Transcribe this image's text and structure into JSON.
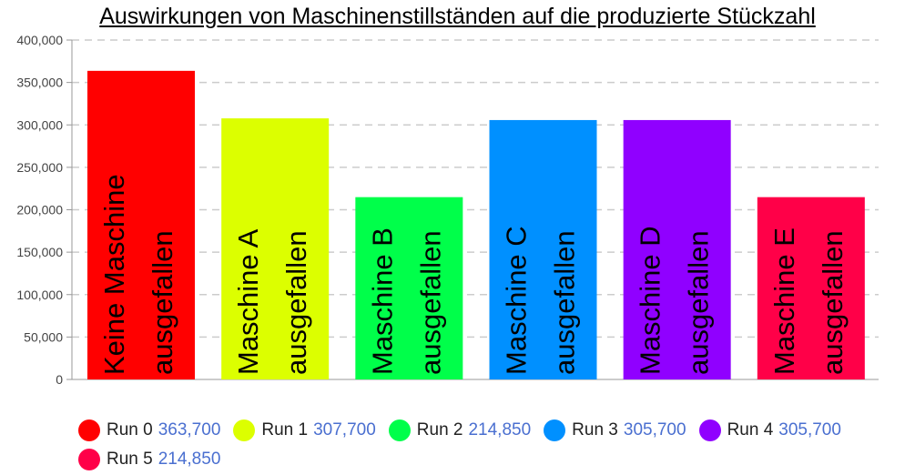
{
  "chart_data": {
    "type": "bar",
    "title": "Auswirkungen von Maschinenstillständen auf die produzierte Stückzahl",
    "xlabel": "",
    "ylabel": "",
    "ylim": [
      0,
      400000
    ],
    "yticks": [
      "0",
      "50,000",
      "100,000",
      "150,000",
      "200,000",
      "250,000",
      "300,000",
      "350,000",
      "400,000"
    ],
    "grid": true,
    "legend_position": "bottom",
    "categories": [
      [
        "Keine Maschine",
        "ausgefallen"
      ],
      [
        "Maschine A",
        "ausgefallen"
      ],
      [
        "Maschine B",
        "ausgefallen"
      ],
      [
        "Maschine C",
        "ausgefallen"
      ],
      [
        "Maschine D",
        "ausgefallen"
      ],
      [
        "Maschine E",
        "ausgefallen"
      ]
    ],
    "series": [
      {
        "name": "Run 0",
        "value": 363700,
        "value_label": "363,700",
        "color": "#ff0000"
      },
      {
        "name": "Run 1",
        "value": 307700,
        "value_label": "307,700",
        "color": "#dcff00"
      },
      {
        "name": "Run 2",
        "value": 214850,
        "value_label": "214,850",
        "color": "#00ff4a"
      },
      {
        "name": "Run 3",
        "value": 305700,
        "value_label": "305,700",
        "color": "#0090ff"
      },
      {
        "name": "Run 4",
        "value": 305700,
        "value_label": "305,700",
        "color": "#9000ff"
      },
      {
        "name": "Run 5",
        "value": 214850,
        "value_label": "214,850",
        "color": "#ff0048"
      }
    ]
  }
}
